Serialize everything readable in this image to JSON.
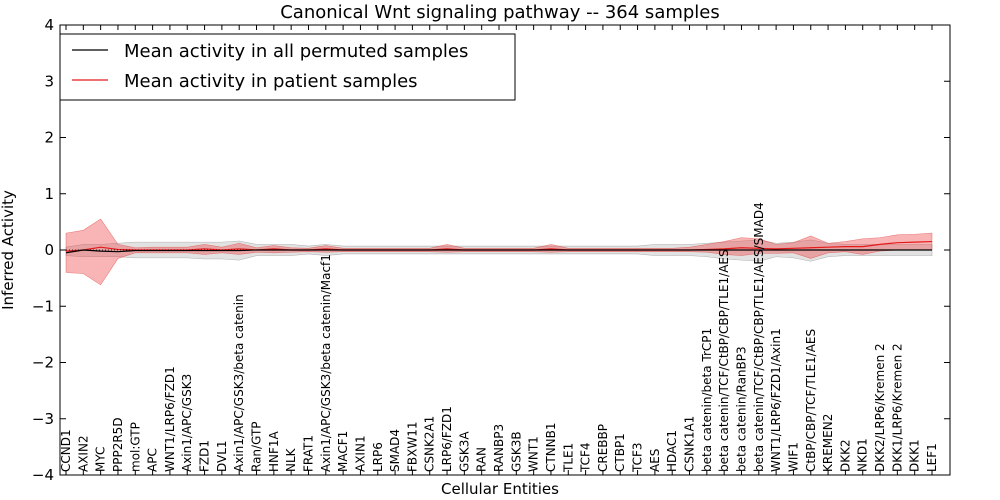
{
  "chart_data": {
    "type": "line",
    "title": "Canonical Wnt signaling pathway -- 364 samples",
    "xlabel": "Cellular Entities",
    "ylabel": "Inferred Activity",
    "ylim": [
      -4,
      4
    ],
    "yticks": [
      -4,
      -3,
      -2,
      -1,
      0,
      1,
      2,
      3,
      4
    ],
    "ytick_labels": [
      "−4",
      "−3",
      "−2",
      "−1",
      "0",
      "1",
      "2",
      "3",
      "4"
    ],
    "legend_position": "top-left",
    "categories": [
      "CCND1",
      "AXIN2",
      "MYC",
      "PPP2R5D",
      "mol:GTP",
      "APC",
      "WNT1/LRP6/FZD1",
      "Axin1/APC/GSK3",
      "FZD1",
      "DVL1",
      "Axin1/APC/GSK3/beta catenin",
      "Ran/GTP",
      "HNF1A",
      "NLK",
      "FRAT1",
      "Axin1/APC/GSK3/beta catenin/Macf1",
      "MACF1",
      "AXIN1",
      "LRP6",
      "SMAD4",
      "FBXW11",
      "CSNK2A1",
      "LRP6/FZD1",
      "GSK3A",
      "RAN",
      "RANBP3",
      "GSK3B",
      "WNT1",
      "CTNNB1",
      "TLE1",
      "TCF4",
      "CREBBP",
      "CTBP1",
      "TCF3",
      "AES",
      "HDAC1",
      "CSNK1A1",
      "beta catenin/beta TrCP1",
      "beta catenin/TCF/CtBP/CBP/TLE1/AES",
      "beta catenin/RanBP3",
      "beta catenin/TCF/CtBP/CBP/TLE1/AES/SMAD4",
      "WNT1/LRP6/FZD1/Axin1",
      "WIF1",
      "CtBP/CBP/TCF/TLE1/AES",
      "KREMEN2",
      "DKK2",
      "NKD1",
      "DKK2/LRP6/Kremen 2",
      "DKK1/LRP6/Kremen 2",
      "DKK1",
      "LEF1"
    ],
    "series": [
      {
        "name": "Mean activity in all permuted samples",
        "color": "#000000",
        "values": [
          -0.05,
          0.0,
          -0.02,
          -0.03,
          -0.01,
          -0.01,
          -0.01,
          -0.01,
          -0.01,
          -0.01,
          -0.01,
          0.0,
          0.0,
          0.0,
          0.0,
          0.0,
          0.0,
          0.0,
          0.0,
          0.0,
          0.0,
          0.0,
          0.0,
          0.0,
          0.0,
          0.0,
          0.0,
          0.0,
          0.0,
          0.0,
          0.0,
          0.0,
          0.0,
          0.0,
          0.0,
          0.0,
          0.0,
          0.0,
          0.0,
          0.0,
          0.0,
          0.0,
          0.0,
          0.0,
          0.0,
          0.0,
          0.0,
          0.0,
          0.0,
          0.0,
          0.0
        ],
        "lower": [
          -0.1,
          -0.12,
          -0.12,
          -0.12,
          -0.14,
          -0.14,
          -0.14,
          -0.14,
          -0.16,
          -0.16,
          -0.18,
          -0.1,
          -0.1,
          -0.1,
          -0.07,
          -0.1,
          -0.07,
          -0.07,
          -0.07,
          -0.07,
          -0.07,
          -0.07,
          -0.07,
          -0.07,
          -0.07,
          -0.07,
          -0.07,
          -0.07,
          -0.07,
          -0.07,
          -0.07,
          -0.07,
          -0.07,
          -0.07,
          -0.1,
          -0.1,
          -0.1,
          -0.12,
          -0.16,
          -0.18,
          -0.2,
          -0.12,
          -0.14,
          -0.2,
          -0.12,
          -0.1,
          -0.1,
          -0.1,
          -0.1,
          -0.1,
          -0.1
        ],
        "upper": [
          0.05,
          0.1,
          0.1,
          0.12,
          0.14,
          0.14,
          0.14,
          0.14,
          0.14,
          0.14,
          0.16,
          0.1,
          0.1,
          0.1,
          0.07,
          0.1,
          0.07,
          0.07,
          0.07,
          0.07,
          0.07,
          0.07,
          0.07,
          0.07,
          0.07,
          0.07,
          0.07,
          0.07,
          0.07,
          0.07,
          0.07,
          0.07,
          0.07,
          0.07,
          0.1,
          0.1,
          0.1,
          0.12,
          0.14,
          0.16,
          0.18,
          0.12,
          0.14,
          0.18,
          0.12,
          0.1,
          0.1,
          0.1,
          0.1,
          0.1,
          0.1
        ]
      },
      {
        "name": "Mean activity in patient samples",
        "color": "#e41a1c",
        "values": [
          -0.02,
          0.0,
          0.05,
          0.01,
          0.0,
          0.0,
          0.0,
          0.0,
          0.02,
          0.0,
          0.02,
          0.0,
          0.02,
          0.0,
          0.0,
          0.02,
          0.0,
          0.0,
          0.0,
          0.0,
          0.0,
          0.0,
          0.02,
          0.0,
          0.0,
          0.0,
          0.0,
          0.0,
          0.02,
          0.0,
          0.0,
          0.0,
          0.0,
          0.0,
          0.0,
          0.0,
          0.0,
          0.01,
          0.02,
          0.04,
          0.03,
          0.02,
          0.03,
          0.04,
          0.05,
          0.06,
          0.06,
          0.1,
          0.13,
          0.14,
          0.15
        ],
        "lower": [
          -0.4,
          -0.42,
          -0.62,
          -0.15,
          -0.05,
          -0.05,
          -0.05,
          -0.05,
          -0.08,
          -0.05,
          -0.08,
          -0.04,
          -0.05,
          -0.04,
          -0.03,
          -0.04,
          -0.03,
          -0.03,
          -0.03,
          -0.03,
          -0.03,
          -0.03,
          -0.04,
          -0.03,
          -0.03,
          -0.03,
          -0.03,
          -0.03,
          -0.04,
          -0.03,
          -0.03,
          -0.03,
          -0.03,
          -0.03,
          -0.03,
          -0.03,
          -0.03,
          -0.04,
          -0.08,
          -0.1,
          -0.06,
          -0.06,
          -0.05,
          -0.15,
          -0.05,
          -0.03,
          -0.08,
          -0.02,
          0.0,
          0.0,
          0.0
        ],
        "upper": [
          0.3,
          0.35,
          0.55,
          0.1,
          0.04,
          0.05,
          0.05,
          0.05,
          0.1,
          0.05,
          0.12,
          0.04,
          0.08,
          0.04,
          0.03,
          0.08,
          0.03,
          0.03,
          0.03,
          0.03,
          0.03,
          0.03,
          0.1,
          0.03,
          0.03,
          0.03,
          0.03,
          0.03,
          0.1,
          0.03,
          0.03,
          0.03,
          0.03,
          0.03,
          0.03,
          0.03,
          0.05,
          0.1,
          0.15,
          0.22,
          0.2,
          0.1,
          0.13,
          0.25,
          0.12,
          0.15,
          0.2,
          0.22,
          0.27,
          0.28,
          0.3
        ]
      }
    ]
  }
}
